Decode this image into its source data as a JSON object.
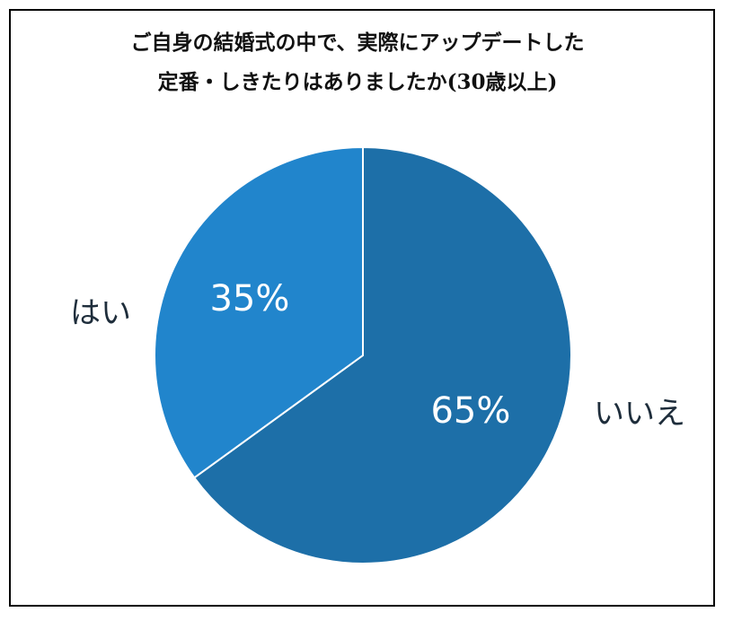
{
  "chart_data": {
    "type": "pie",
    "title": [
      "ご自身の結婚式の中で、実際にアップデートした",
      "定番・しきたりはありましたか(30歳以上)"
    ],
    "categories": [
      "いいえ",
      "はい"
    ],
    "values": [
      65,
      35
    ],
    "value_labels": [
      "65%",
      "35%"
    ],
    "colors": [
      "#1d6fa8",
      "#2185cc"
    ],
    "start": "12 o'clock, clockwise"
  }
}
